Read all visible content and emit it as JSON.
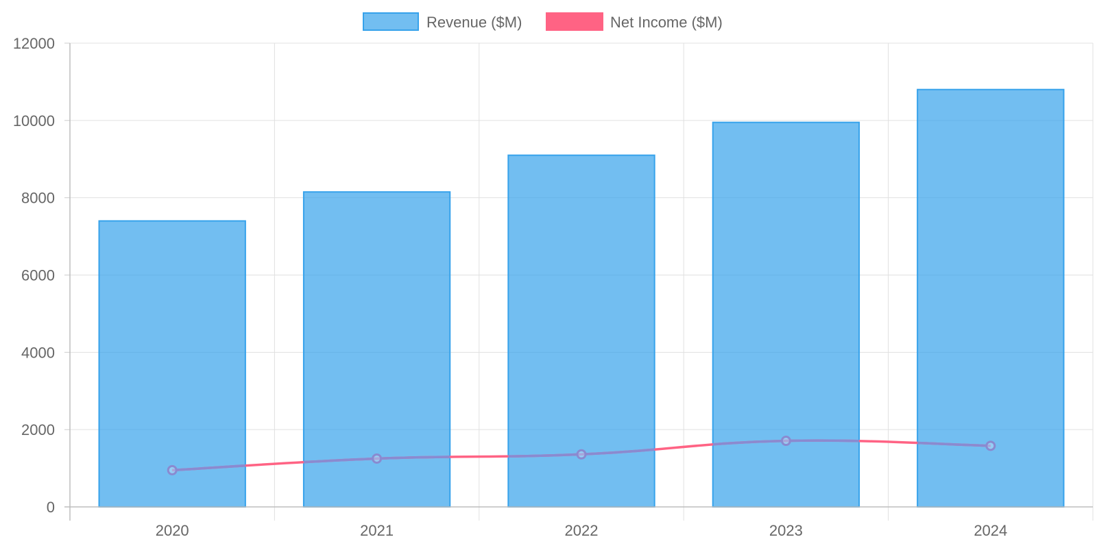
{
  "chart_data": {
    "type": "bar",
    "categories": [
      "2020",
      "2021",
      "2022",
      "2023",
      "2024"
    ],
    "series": [
      {
        "name": "Revenue ($M)",
        "type": "bar",
        "values": [
          7400,
          8150,
          9100,
          9950,
          10800
        ],
        "color": "#36a2eb",
        "fill": "rgba(54,162,235,0.7)"
      },
      {
        "name": "Net Income ($M)",
        "type": "line",
        "values": [
          950,
          1250,
          1360,
          1710,
          1580
        ],
        "color": "#ff6384",
        "point_color": "#8a8ad0"
      }
    ],
    "ylim": [
      0,
      12000
    ],
    "yticks": [
      "0",
      "2000",
      "4000",
      "6000",
      "8000",
      "10000",
      "12000"
    ],
    "grid": true,
    "legend_position": "top-center",
    "title": "",
    "xlabel": "",
    "ylabel": ""
  }
}
